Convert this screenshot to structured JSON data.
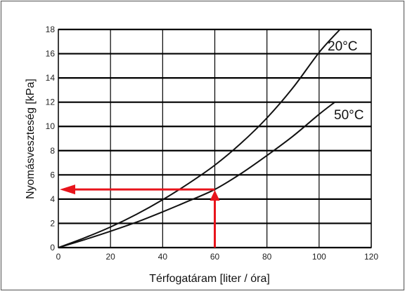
{
  "chart_data": {
    "type": "line",
    "title": "",
    "xlabel": "Térfogatáram  [liter / óra]",
    "ylabel": "Nyomásveszteség  [kPa]",
    "xlim": [
      0,
      120
    ],
    "ylim": [
      0,
      18
    ],
    "x_ticks": [
      "0",
      "20",
      "40",
      "60",
      "80",
      "100",
      "120"
    ],
    "y_ticks": [
      "0",
      "2",
      "4",
      "6",
      "8",
      "10",
      "12",
      "14",
      "16",
      "18"
    ],
    "grid": true,
    "legend": "none",
    "series": [
      {
        "name": "20°C",
        "x": [
          0,
          10,
          20,
          30,
          40,
          50,
          60,
          70,
          80,
          90,
          100,
          108
        ],
        "y": [
          0,
          0.8,
          1.7,
          2.75,
          3.95,
          5.3,
          6.8,
          8.6,
          10.7,
          13.2,
          16.1,
          18.0
        ]
      },
      {
        "name": "50°C",
        "x": [
          0,
          10,
          20,
          30,
          40,
          50,
          60,
          70,
          80,
          90,
          100,
          106
        ],
        "y": [
          0,
          0.65,
          1.35,
          2.1,
          2.95,
          3.85,
          4.8,
          6.1,
          7.6,
          9.2,
          11.0,
          12.0
        ]
      }
    ],
    "annotations": [
      {
        "type": "arrow-path",
        "color": "#e8141c",
        "path": [
          [
            60,
            0
          ],
          [
            60,
            4.8
          ],
          [
            0,
            4.8
          ]
        ],
        "description_value": "60 liter/óra → 4.8 kPa"
      }
    ]
  },
  "colors": {
    "curve": "#111111",
    "grid": "#000000",
    "arrow": "#e8141c",
    "frame": "#555555"
  }
}
